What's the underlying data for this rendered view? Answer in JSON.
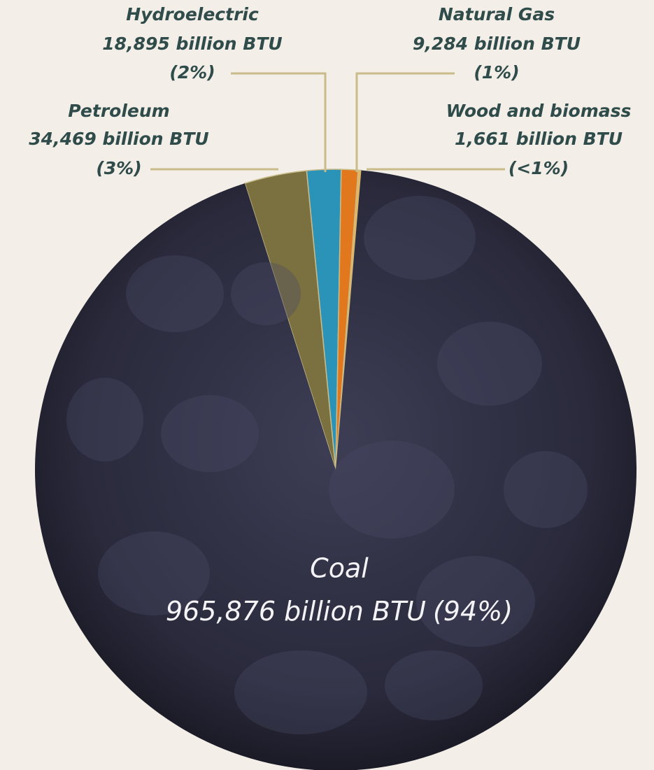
{
  "chart_data": {
    "type": "pie",
    "categories": [
      "Petroleum",
      "Hydroelectric",
      "Natural Gas",
      "Wood and biomass",
      "Coal"
    ],
    "values": [
      34469,
      18895,
      9284,
      1661,
      965876
    ],
    "value_labels": [
      "34,469 billion BTU",
      "18,895 billion BTU",
      "9,284 billion BTU",
      "1,661 billion BTU",
      "965,876 billion BTU"
    ],
    "percent_labels": [
      "(3%)",
      "(2%)",
      "(1%)",
      "(<1%)",
      "(94%)"
    ],
    "colors": [
      "#7a7040",
      "#2b93b8",
      "#e2781e",
      "#e8b45a",
      "#2b2b3d"
    ]
  }
}
